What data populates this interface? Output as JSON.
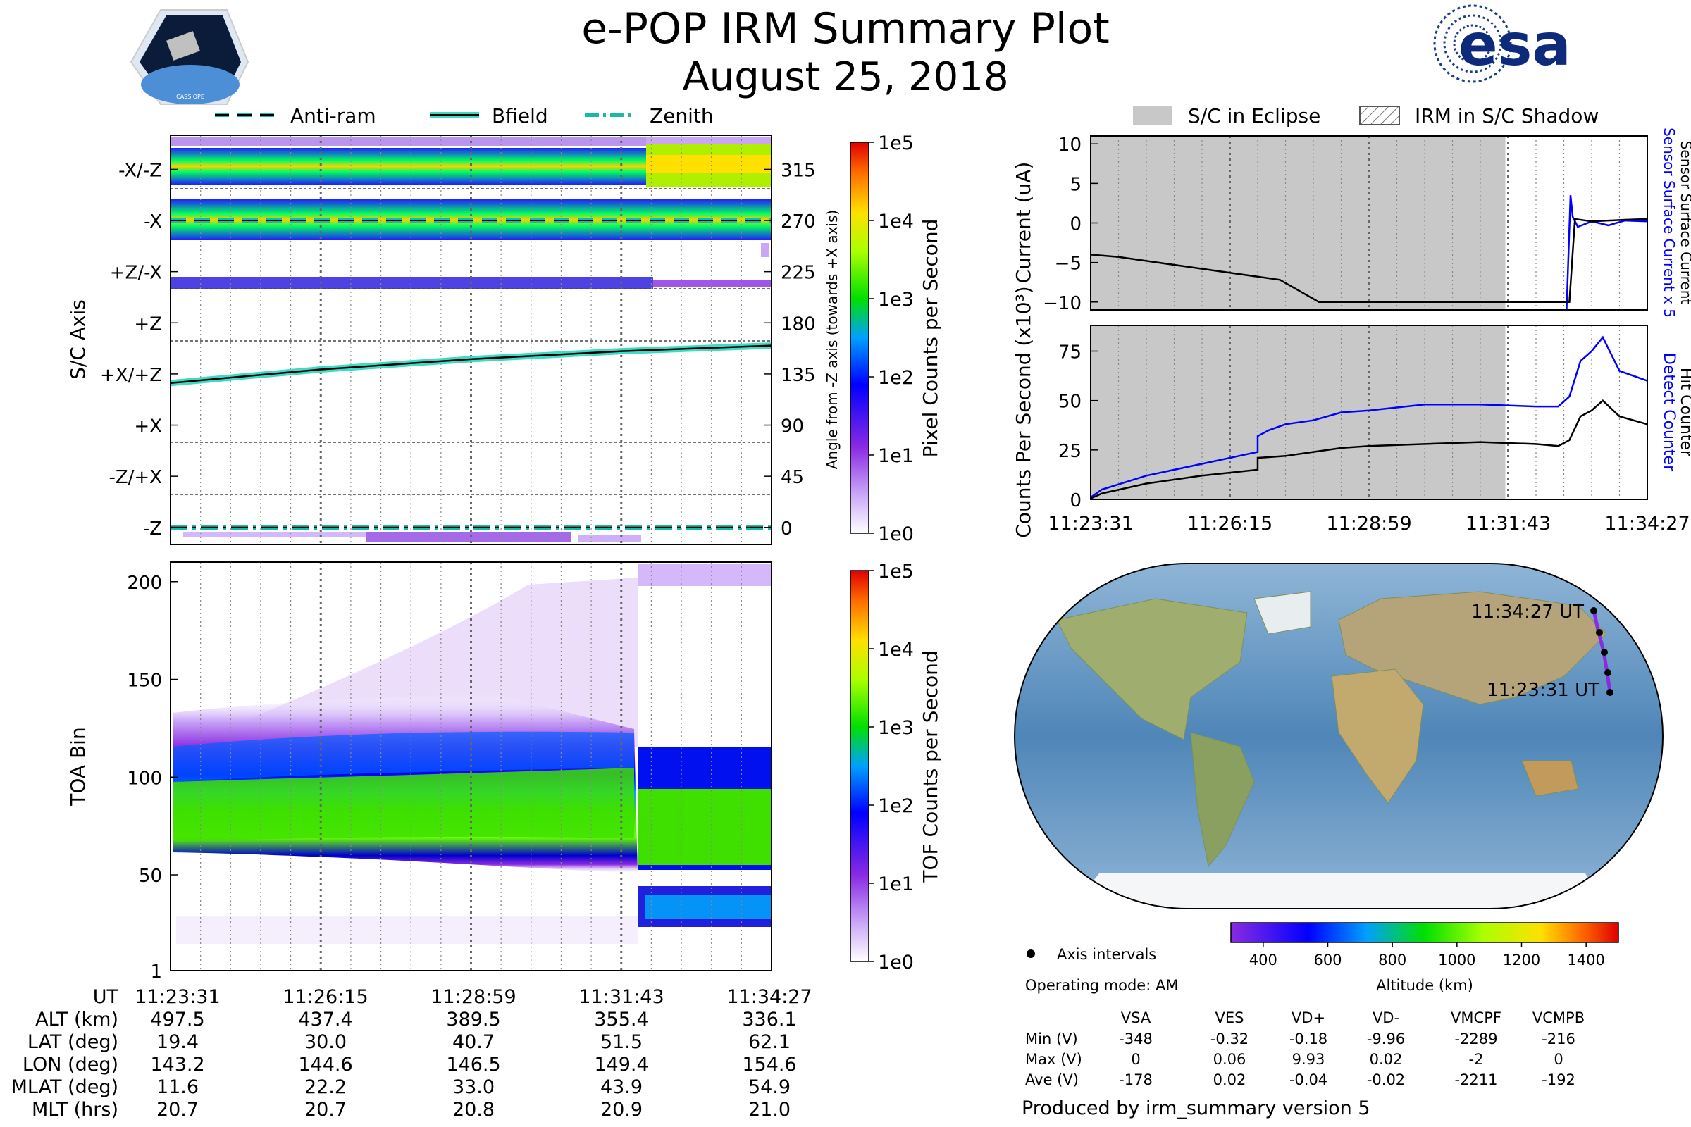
{
  "header": {
    "title": "e-POP IRM Summary Plot",
    "date": "August 25, 2018",
    "mission_logo_text": "CASSIOPE",
    "agency_logo_text": "esa"
  },
  "legend_left": {
    "items": [
      "Anti-ram",
      "Bfield",
      "Zenith"
    ]
  },
  "legend_right": {
    "items": [
      "S/C in Eclipse",
      "IRM in S/C Shadow"
    ]
  },
  "colors": {
    "eclipse": "#c8c8c8",
    "detect": "#0000ff",
    "bfield": "#3ddbc4",
    "zenith": "#19b9a6",
    "orbit": "#8a2be2"
  },
  "time_ticks": [
    "11:23:31",
    "11:26:15",
    "11:28:59",
    "11:31:43",
    "11:34:27"
  ],
  "chart_data": [
    {
      "type": "heatmap",
      "name": "pixel-heatmap",
      "ylabel": "S/C Axis",
      "y2label": "Angle from -Z axis (towards +X axis)",
      "axis_labels": [
        "-X/-Z",
        "-X",
        "+Z/-X",
        "+Z",
        "+X/+Z",
        "+X",
        "-Z/+X",
        "-Z"
      ],
      "angle_ticks": [
        "315",
        "270",
        "225",
        "180",
        "135",
        "90",
        "45",
        "0"
      ],
      "angle_range": [
        -15,
        345
      ],
      "bfield_angle": {
        "x": [
          0,
          0.25,
          0.5,
          0.75,
          1.0
        ],
        "y": [
          127,
          139,
          148,
          155,
          160
        ]
      },
      "antiram_angle": 270,
      "zenith_angle": 0,
      "colorbar": {
        "label": "Pixel Counts per Second",
        "ticks": [
          "1e5",
          "1e4",
          "1e3",
          "1e2",
          "1e1",
          "1e0"
        ]
      }
    },
    {
      "type": "heatmap",
      "name": "tof-heatmap",
      "ylabel": "TOA Bin",
      "yticks": [
        "200",
        "150",
        "100",
        "50",
        "1"
      ],
      "ylim": [
        1,
        210
      ],
      "colorbar": {
        "label": "TOF Counts per Second",
        "ticks": [
          "1e5",
          "1e4",
          "1e3",
          "1e2",
          "1e1",
          "1e0"
        ]
      }
    },
    {
      "type": "line",
      "name": "current",
      "ylabel": "Current (uA)",
      "yticks": [
        "10",
        "5",
        "0",
        "−5",
        "−10"
      ],
      "ylim": [
        -11,
        11
      ],
      "right_label_blue": "Sensor Surface Current x 5",
      "right_label_black": "Sensor Surface Current",
      "series": [
        {
          "name": "Sensor Surface Current",
          "x": [
            0,
            0.05,
            0.1,
            0.2,
            0.25,
            0.3,
            0.34,
            0.41,
            0.5,
            0.6,
            0.7,
            0.8,
            0.84,
            0.86,
            0.87,
            0.9,
            0.93,
            0.96,
            1.0
          ],
          "y": [
            -4,
            -4.3,
            -4.8,
            -5.8,
            -6.3,
            -6.8,
            -7.2,
            -10,
            -10,
            -10,
            -10,
            -10,
            -10,
            -10,
            0.5,
            0.2,
            0.3,
            0.4,
            0.5
          ]
        },
        {
          "name": "Sensor Surface Current x 5",
          "x": [
            0.855,
            0.862,
            0.866,
            0.875,
            0.9,
            0.93,
            0.96,
            1.0
          ],
          "y": [
            -11,
            3.5,
            0.8,
            -0.5,
            0.2,
            -0.3,
            0.3,
            0.2
          ]
        }
      ]
    },
    {
      "type": "line",
      "name": "counts",
      "ylabel": "Counts Per Second (x10³)",
      "yticks": [
        "75",
        "50",
        "25",
        "0"
      ],
      "ylim": [
        0,
        88
      ],
      "right_label_blue": "Detect Counter",
      "right_label_black": "Hit Counter",
      "series": [
        {
          "name": "Detect Counter",
          "x": [
            0,
            0.02,
            0.1,
            0.2,
            0.3,
            0.3,
            0.32,
            0.35,
            0.4,
            0.45,
            0.5,
            0.6,
            0.7,
            0.8,
            0.84,
            0.86,
            0.88,
            0.9,
            0.92,
            0.95,
            1.0
          ],
          "y": [
            1,
            5,
            12,
            18,
            24,
            32,
            35,
            38,
            40,
            44,
            45,
            48,
            48,
            47,
            47,
            52,
            70,
            75,
            82,
            65,
            60
          ]
        },
        {
          "name": "Hit Counter",
          "x": [
            0,
            0.02,
            0.1,
            0.2,
            0.3,
            0.3,
            0.35,
            0.4,
            0.45,
            0.5,
            0.6,
            0.7,
            0.8,
            0.84,
            0.86,
            0.88,
            0.9,
            0.92,
            0.95,
            1.0
          ],
          "y": [
            0.5,
            3,
            8,
            12,
            15,
            21,
            22,
            24,
            26,
            27,
            28,
            29,
            28,
            27,
            30,
            42,
            45,
            50,
            42,
            38
          ]
        }
      ]
    }
  ],
  "map": {
    "start_label": "11:23:31 UT",
    "end_label": "11:34:27 UT",
    "legend_label": "Axis intervals",
    "operating_mode": "Operating mode: AM",
    "altitude_colorbar": {
      "label": "Altitude (km)",
      "ticks": [
        "400",
        "600",
        "800",
        "1000",
        "1200",
        "1400"
      ]
    }
  },
  "voltage_table": {
    "columns": [
      "VSA",
      "VES",
      "VD+",
      "VD-",
      "VMCPF",
      "VCMPB"
    ],
    "rows": [
      {
        "label": "Min (V)",
        "values": [
          "-348",
          "-0.32",
          "-0.18",
          "-9.96",
          "-2289",
          "-216"
        ]
      },
      {
        "label": "Max (V)",
        "values": [
          "0",
          "0.06",
          "9.93",
          "0.02",
          "-2",
          "0"
        ]
      },
      {
        "label": "Ave (V)",
        "values": [
          "-178",
          "0.02",
          "-0.04",
          "-0.02",
          "-2211",
          "-192"
        ]
      }
    ]
  },
  "ephemeris_table": {
    "row_labels": [
      "UT",
      "ALT (km)",
      "LAT (deg)",
      "LON (deg)",
      "MLAT (deg)",
      "MLT (hrs)"
    ],
    "columns": [
      [
        "11:23:31",
        "497.5",
        "19.4",
        "143.2",
        "11.6",
        "20.7"
      ],
      [
        "11:26:15",
        "437.4",
        "30.0",
        "144.6",
        "22.2",
        "20.7"
      ],
      [
        "11:28:59",
        "389.5",
        "40.7",
        "146.5",
        "33.0",
        "20.8"
      ],
      [
        "11:31:43",
        "355.4",
        "51.5",
        "149.4",
        "43.9",
        "20.9"
      ],
      [
        "11:34:27",
        "336.1",
        "62.1",
        "154.6",
        "54.9",
        "21.0"
      ]
    ]
  },
  "footer": "Produced by irm_summary version 5"
}
